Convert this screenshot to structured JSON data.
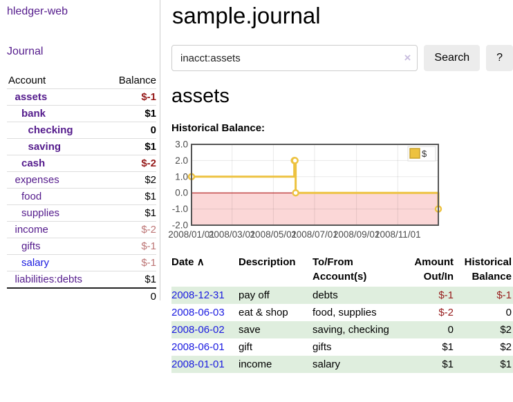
{
  "app": {
    "title": "hledger-web"
  },
  "colors": {
    "link_purple": "#541b8c",
    "link_blue": "#1a1ae0",
    "negative_strong": "#961a1a",
    "negative_soft": "#bd7575",
    "row_stripe_green": "#dfeede",
    "series_gold": "#EDC240"
  },
  "sidebar": {
    "journal_link": "Journal",
    "accounts_table": {
      "headers": {
        "account": "Account",
        "balance": "Balance"
      },
      "rows": [
        {
          "name": "assets",
          "depth": 1,
          "bold": true,
          "balance": "$-1"
        },
        {
          "name": "bank",
          "depth": 2,
          "bold": true,
          "balance": "$1"
        },
        {
          "name": "checking",
          "depth": 3,
          "bold": true,
          "balance": "0"
        },
        {
          "name": "saving",
          "depth": 3,
          "bold": true,
          "balance": "$1"
        },
        {
          "name": "cash",
          "depth": 2,
          "bold": true,
          "balance": "$-2"
        },
        {
          "name": "expenses",
          "depth": 1,
          "bold": false,
          "balance": "$2"
        },
        {
          "name": "food",
          "depth": 2,
          "bold": false,
          "balance": "$1"
        },
        {
          "name": "supplies",
          "depth": 2,
          "bold": false,
          "balance": "$1"
        },
        {
          "name": "income",
          "depth": 1,
          "bold": false,
          "balance": "$-2",
          "muted": true
        },
        {
          "name": "gifts",
          "depth": 2,
          "bold": false,
          "balance": "$-1",
          "muted": true
        },
        {
          "name": "salary",
          "depth": 2,
          "bold": false,
          "balance": "$-1",
          "muted": true,
          "blue": true
        },
        {
          "name": "liabilities:debts",
          "depth": 1,
          "bold": false,
          "balance": "$1"
        }
      ],
      "total": "0"
    }
  },
  "main": {
    "page_title": "sample.journal",
    "search": {
      "value": "inacct:assets",
      "clear_icon": "×",
      "button_label": "Search",
      "help_label": "?"
    },
    "section_title": "assets",
    "chart_label": "Historical Balance:",
    "register_table": {
      "headers": {
        "date": "Date",
        "description": "Description",
        "accounts": "To/From Account(s)",
        "amount": "Amount Out/In",
        "balance": "Historical Balance"
      },
      "sort_icon": "∧",
      "rows": [
        {
          "date": "2008-12-31",
          "description": "pay off",
          "accounts": [
            "debts"
          ],
          "amount": "$-1",
          "balance": "$-1"
        },
        {
          "date": "2008-06-03",
          "description": "eat & shop",
          "accounts": [
            "food",
            "supplies"
          ],
          "amount": "$-2",
          "balance": "0"
        },
        {
          "date": "2008-06-02",
          "description": "save",
          "accounts": [
            "saving",
            "checking"
          ],
          "amount": "0",
          "balance": "$2"
        },
        {
          "date": "2008-06-01",
          "description": "gift",
          "accounts": [
            "gifts"
          ],
          "amount": "$1",
          "balance": "$2"
        },
        {
          "date": "2008-01-01",
          "description": "income",
          "accounts": [
            "salary"
          ],
          "amount": "$1",
          "balance": "$1"
        }
      ]
    }
  },
  "chart_data": {
    "type": "line",
    "step": true,
    "title": "Historical Balance",
    "legend": {
      "label": "$",
      "position": "top-right"
    },
    "x": [
      "2008-01-01",
      "2008-06-01",
      "2008-06-02",
      "2008-06-03",
      "2008-12-31"
    ],
    "y": [
      1,
      2,
      2,
      0,
      -1
    ],
    "x_tick_labels": [
      "2008/01/01",
      "2008/03/01",
      "2008/05/01",
      "2008/07/01",
      "2008/09/01",
      "2008/11/01"
    ],
    "y_tick_labels": [
      "3.0",
      "2.0",
      "1.0",
      "0.0",
      "-1.0",
      "-2.0"
    ],
    "xlim": [
      "2008-01-01",
      "2008-12-31"
    ],
    "ylim": [
      -2,
      3
    ],
    "grid": true,
    "series_color": "#EDC240",
    "marker": "open-circle",
    "negative_region_fill": "#fbd7d7",
    "zero_line_color": "#aa0000",
    "plot_border_color": "#545454",
    "tick_label_color": "#4a4a4a"
  }
}
